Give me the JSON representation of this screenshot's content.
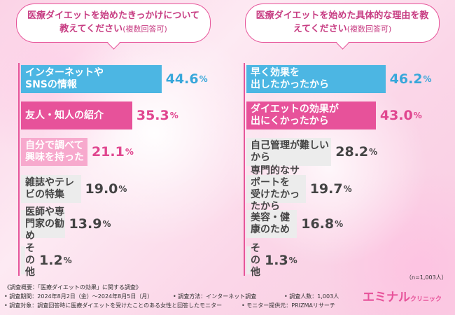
{
  "chart_data": [
    {
      "type": "bar",
      "title": "医療ダイエットを始めたきっかけについて教えてください",
      "subtitle": "(複数回答可)",
      "categories": [
        "インターネットや\nSNSの情報",
        "友人・知人の紹介",
        "自分で調べて\n興味を持った",
        "雑誌やテレビの特集",
        "医師や専門家の勧め",
        "その他"
      ],
      "values": [
        44.6,
        35.3,
        21.1,
        19.0,
        13.9,
        1.2
      ],
      "labels": [
        "44.6",
        "35.3",
        "21.1",
        "19.0",
        "13.9",
        "1.2"
      ],
      "unit": "%",
      "colors": [
        "#4cb6e3",
        "#e7529a",
        "#f7a9cd",
        "#ececec",
        "#ececec",
        "#ececec"
      ]
    },
    {
      "type": "bar",
      "title": "医療ダイエットを始めた具体的な理由を教えてください",
      "subtitle": "(複数回答可)",
      "categories": [
        "早く効果を\n出したかったから",
        "ダイエットの効果が\n出にくかったから",
        "自己管理が難しいから",
        "専門的なサポートを\n受けたかったから",
        "美容・健康のため",
        "その他"
      ],
      "values": [
        46.2,
        43.0,
        28.2,
        19.7,
        16.8,
        1.3
      ],
      "labels": [
        "46.2",
        "43.0",
        "28.2",
        "19.7",
        "16.8",
        "1.3"
      ],
      "unit": "%",
      "colors": [
        "#4cb6e3",
        "#e7529a",
        "#ececec",
        "#ececec",
        "#ececec",
        "#ececec"
      ]
    }
  ],
  "sample_note": "（n=1,003人）",
  "footer": {
    "line1a": "《調査概要：「医療ダイエットの効果」に関する調査》",
    "line2a": "• 調査期間：2024年8月2日（金）～2024年8月5日（月）",
    "line2b": "• 調査方法：インターネット調査",
    "line2c": "• 調査人数：1,003人",
    "line3a": "• 調査対象：調査回答時に医療ダイエットを受けたことのある女性と回答したモニター",
    "line3b": "• モニター提供元：PRIZMAリサーチ"
  },
  "logo": {
    "main": "エミナル",
    "sub": "クリニック"
  }
}
